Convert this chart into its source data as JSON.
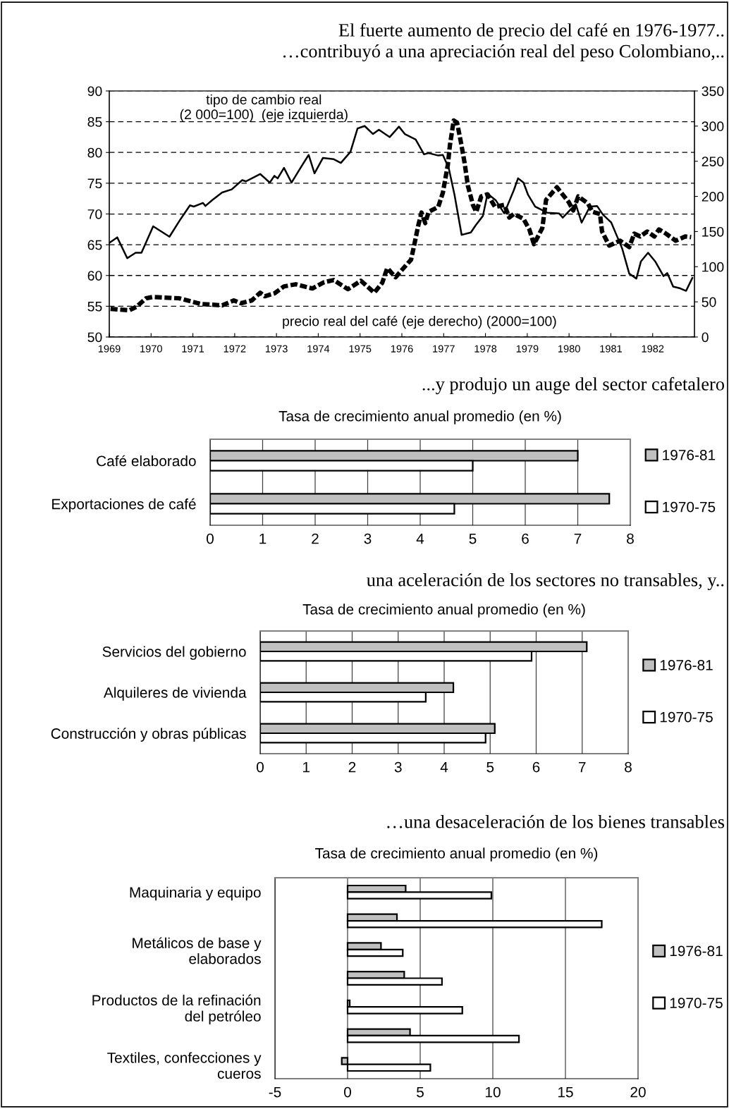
{
  "chart_data": [
    {
      "type": "line",
      "title": "El fuerte aumento de precio del café en 1976-1977..",
      "subtitle": "…contribuyó a una apreciación real del peso Colombiano,..",
      "xlim": [
        1969,
        1983
      ],
      "xticks": [
        1969,
        1970,
        1971,
        1972,
        1973,
        1974,
        1975,
        1976,
        1977,
        1978,
        1979,
        1980,
        1981,
        1982
      ],
      "ylim": [
        50,
        90
      ],
      "yticks": [
        50,
        55,
        60,
        65,
        70,
        75,
        80,
        85,
        90
      ],
      "y2lim": [
        0,
        350
      ],
      "y2ticks": [
        0,
        50,
        100,
        150,
        200,
        250,
        300,
        350
      ],
      "grid": "y",
      "legend": false,
      "series": [
        {
          "name": "tipo de cambio real\n(2 000=100)  (eje izquierda)",
          "color": "#000000",
          "line_style": "solid",
          "x": [
            1969.0,
            1969.19,
            1969.43,
            1969.63,
            1969.77,
            1970.05,
            1970.44,
            1970.68,
            1970.93,
            1971.02,
            1971.24,
            1971.3,
            1971.47,
            1971.7,
            1971.93,
            1972.18,
            1972.27,
            1972.61,
            1972.84,
            1972.95,
            1973.03,
            1973.18,
            1973.36,
            1973.63,
            1973.77,
            1973.91,
            1974.11,
            1974.37,
            1974.54,
            1974.77,
            1974.94,
            1975.11,
            1975.31,
            1975.45,
            1975.71,
            1975.93,
            1976.07,
            1976.33,
            1976.53,
            1976.64,
            1976.87,
            1976.98,
            1977.12,
            1977.26,
            1977.43,
            1977.65,
            1977.77,
            1977.94,
            1978.05,
            1978.25,
            1978.45,
            1978.68,
            1978.78,
            1978.91,
            1979.02,
            1979.19,
            1979.48,
            1979.76,
            1979.85,
            1980.16,
            1980.3,
            1980.5,
            1980.67,
            1980.81,
            1981.01,
            1981.27,
            1981.44,
            1981.61,
            1981.72,
            1981.89,
            1982.06,
            1982.26,
            1982.35,
            1982.49,
            1982.66,
            1982.8,
            1982.95
          ],
          "values": [
            65.3,
            66.2,
            62.8,
            63.7,
            63.7,
            68.0,
            66.3,
            68.9,
            71.4,
            71.2,
            71.8,
            71.3,
            72.3,
            73.5,
            74.0,
            75.5,
            75.3,
            76.5,
            75.1,
            76.2,
            75.8,
            77.5,
            75.1,
            78.1,
            79.6,
            76.6,
            79.1,
            78.9,
            78.3,
            80.1,
            83.9,
            84.3,
            83.0,
            83.7,
            82.5,
            84.2,
            83.0,
            82.1,
            79.7,
            79.9,
            79.5,
            79.6,
            77.5,
            73.1,
            66.6,
            67.0,
            68.2,
            69.7,
            73.3,
            72.2,
            70.1,
            73.9,
            75.8,
            75.1,
            73.1,
            71.2,
            70.2,
            70.1,
            69.4,
            71.6,
            68.6,
            71.2,
            71.3,
            69.9,
            68.6,
            64.4,
            60.3,
            59.5,
            62.3,
            63.7,
            62.3,
            59.9,
            60.4,
            58.2,
            57.9,
            57.5,
            59.6
          ]
        },
        {
          "name": "precio real del café (eje derecho) (2000=100)",
          "color": "#000000",
          "line_style": "dashed",
          "axis": "y2",
          "x": [
            1969.03,
            1969.48,
            1969.65,
            1969.88,
            1970.05,
            1970.68,
            1971.19,
            1971.7,
            1971.98,
            1972.15,
            1972.41,
            1972.61,
            1972.72,
            1972.95,
            1973.18,
            1973.46,
            1973.86,
            1974.14,
            1974.37,
            1974.71,
            1975.02,
            1975.34,
            1975.53,
            1975.65,
            1975.85,
            1976.07,
            1976.22,
            1976.3,
            1976.39,
            1976.47,
            1976.56,
            1976.64,
            1976.87,
            1976.98,
            1977.1,
            1977.15,
            1977.24,
            1977.32,
            1977.41,
            1977.5,
            1977.58,
            1977.7,
            1977.78,
            1977.9,
            1978.05,
            1978.23,
            1978.45,
            1978.57,
            1978.68,
            1978.91,
            1979.05,
            1979.16,
            1979.36,
            1979.45,
            1979.71,
            1979.99,
            1980.1,
            1980.22,
            1980.45,
            1980.56,
            1980.74,
            1980.79,
            1980.96,
            1981.22,
            1981.44,
            1981.56,
            1981.7,
            1981.87,
            1982.04,
            1982.15,
            1982.32,
            1982.55,
            1982.78,
            1982.92
          ],
          "values": [
            40,
            38,
            43,
            55,
            57,
            55,
            47,
            45,
            52,
            48,
            52,
            63,
            58,
            62,
            72,
            75,
            69,
            78,
            81,
            68,
            80,
            63,
            77,
            98,
            85,
            100,
            110,
            132,
            158,
            177,
            162,
            178,
            185,
            205,
            245,
            273,
            308,
            305,
            278,
            248,
            215,
            188,
            178,
            200,
            203,
            185,
            188,
            170,
            175,
            168,
            153,
            132,
            155,
            195,
            213,
            192,
            180,
            200,
            190,
            178,
            175,
            150,
            130,
            137,
            128,
            147,
            143,
            150,
            143,
            153,
            147,
            137,
            143,
            142
          ]
        }
      ]
    },
    {
      "type": "bar",
      "orientation": "horizontal",
      "title": "...y produjo un auge del sector cafetalero",
      "subtitle": "Tasa de crecimiento anual promedio (en %)",
      "categories": [
        "Café elaborado",
        "Exportaciones de café"
      ],
      "xlim": [
        0,
        8
      ],
      "xticks": [
        0,
        1,
        2,
        3,
        4,
        5,
        6,
        7,
        8
      ],
      "grid": "x",
      "legend": "right",
      "series": [
        {
          "name": "1976-81",
          "color": "#c0c0c0",
          "values": [
            7.0,
            7.6
          ]
        },
        {
          "name": "1970-75",
          "color": "#ffffff",
          "values": [
            5.0,
            4.65
          ]
        }
      ]
    },
    {
      "type": "bar",
      "orientation": "horizontal",
      "title": "una aceleración de los sectores no transables, y..",
      "subtitle": "Tasa de crecimiento anual promedio (en %)",
      "categories": [
        "Servicios del gobierno",
        "Alquileres de vivienda",
        "Construcción y obras públicas"
      ],
      "xlim": [
        0,
        8
      ],
      "xticks": [
        0,
        1,
        2,
        3,
        4,
        5,
        6,
        7,
        8
      ],
      "grid": "x",
      "legend": "right",
      "series": [
        {
          "name": "1976-81",
          "color": "#c0c0c0",
          "values": [
            7.1,
            4.2,
            5.1
          ]
        },
        {
          "name": "1970-75",
          "color": "#ffffff",
          "values": [
            5.9,
            3.6,
            4.9
          ]
        }
      ]
    },
    {
      "type": "bar",
      "orientation": "horizontal",
      "title": "…una desaceleración de los bienes transables",
      "subtitle": "Tasa de crecimiento anual promedio (en %)",
      "categories": [
        "Maquinaria y equipo",
        null,
        "Metálicos de base y\nelaborados",
        null,
        "Productos de la refinación\ndel petróleo",
        null,
        "Textiles, confecciones y\ncueros"
      ],
      "xlim": [
        -5,
        20
      ],
      "xticks": [
        -5,
        0,
        5,
        10,
        15,
        20
      ],
      "grid": "x",
      "legend": "right",
      "series": [
        {
          "name": "1976-81",
          "color": "#c0c0c0",
          "values": [
            4.0,
            3.4,
            2.3,
            3.9,
            0.15,
            4.3,
            -0.4
          ]
        },
        {
          "name": "1970-75",
          "color": "#ffffff",
          "values": [
            9.9,
            17.5,
            3.8,
            6.5,
            7.9,
            11.8,
            5.7
          ]
        }
      ]
    }
  ]
}
